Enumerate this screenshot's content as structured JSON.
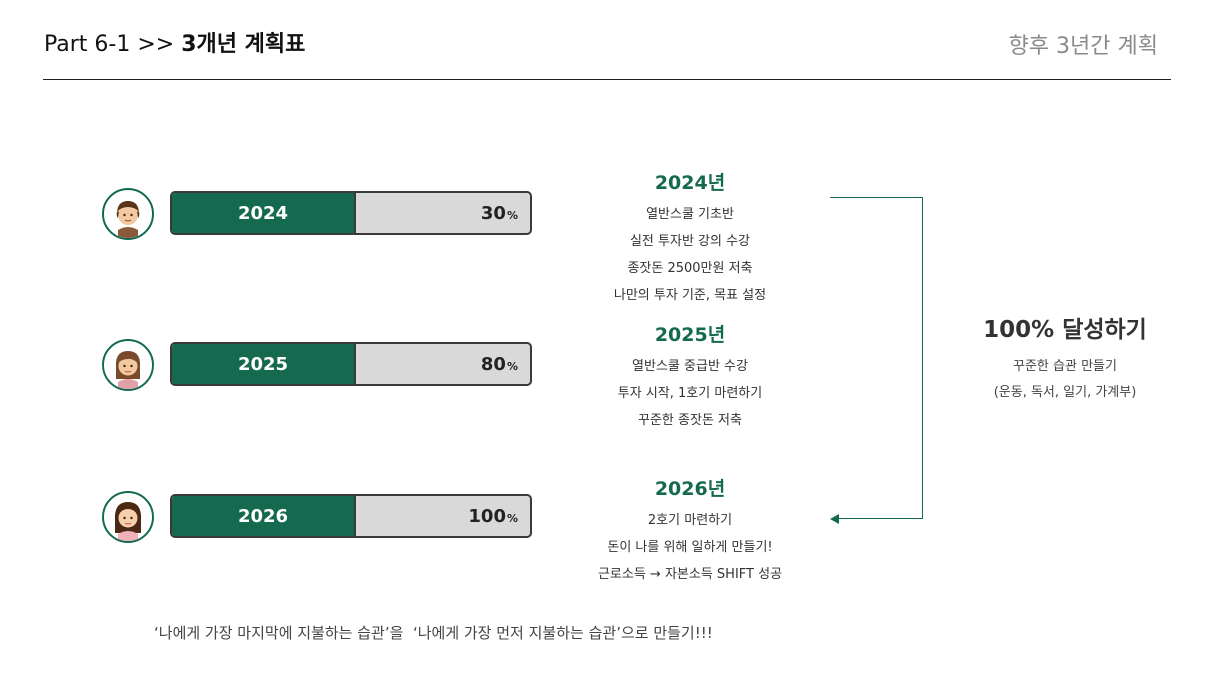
{
  "header": {
    "title_prefix": "Part 6-1 >> ",
    "title_bold": "3개년 계획표",
    "right": "향후 3년간 계획"
  },
  "rows": [
    {
      "year": "2024",
      "progress": 30,
      "pct_value": "30",
      "pct_unit": "%"
    },
    {
      "year": "2025",
      "progress": 80,
      "pct_value": "80",
      "pct_unit": "%"
    },
    {
      "year": "2026",
      "progress": 100,
      "pct_value": "100",
      "pct_unit": "%"
    }
  ],
  "plans": [
    {
      "year": "2024년",
      "items": [
        "열반스쿨 기초반",
        "실전 투자반 강의 수강",
        "종잣돈 2500만원 저축",
        "나만의 투자 기준, 목표 설정"
      ]
    },
    {
      "year": "2025년",
      "items": [
        "열반스쿨 중급반 수강",
        "투자 시작, 1호기 마련하기",
        "꾸준한 종잣돈 저축"
      ]
    },
    {
      "year": "2026년",
      "items": [
        "2호기 마련하기",
        "돈이 나를 위해 일하게 만들기!",
        "근로소득 → 자본소득 SHIFT 성공"
      ]
    }
  ],
  "goal": {
    "title": "100% 달성하기",
    "line1": "꾸준한 습관 만들기",
    "line2": "(운동, 독서, 일기, 가계부)"
  },
  "footer": "‘나에게 가장 마지막에 지불하는 습관’을  ‘나에게 가장 먼저 지불하는 습관’으로 만들기!!!",
  "colors": {
    "accent": "#14694f",
    "bar_bg": "#d9d9d9",
    "border": "#3a3a3a"
  }
}
